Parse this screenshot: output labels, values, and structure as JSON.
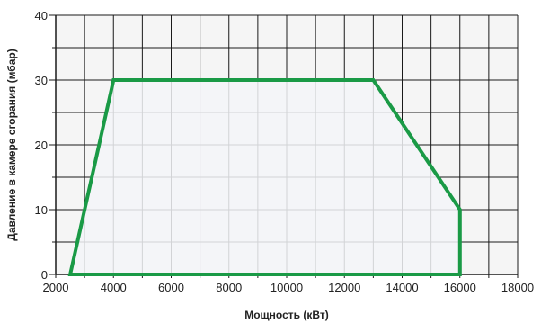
{
  "chart_data": {
    "type": "area",
    "title": "",
    "xlabel": "Мощность (кВт)",
    "ylabel": "Давление в камере сгорания (мбар)",
    "xlim": [
      2000,
      18000
    ],
    "ylim": [
      0,
      40
    ],
    "x_ticks": [
      "2000",
      "4000",
      "6000",
      "8000",
      "10000",
      "12000",
      "14000",
      "16000",
      "18000"
    ],
    "y_ticks": [
      "0",
      "10",
      "20",
      "30",
      "40"
    ],
    "grid": true,
    "series": [
      {
        "points": [
          [
            2500,
            0
          ],
          [
            4000,
            30
          ],
          [
            13000,
            30
          ],
          [
            16000,
            10
          ],
          [
            16000,
            0
          ],
          [
            2500,
            0
          ]
        ]
      }
    ],
    "colors": {
      "line": "#1a9a46",
      "fill": "#f3f4f8",
      "grid_fill": "#f5f5f5",
      "grid_line": "#1a1a1a"
    }
  }
}
